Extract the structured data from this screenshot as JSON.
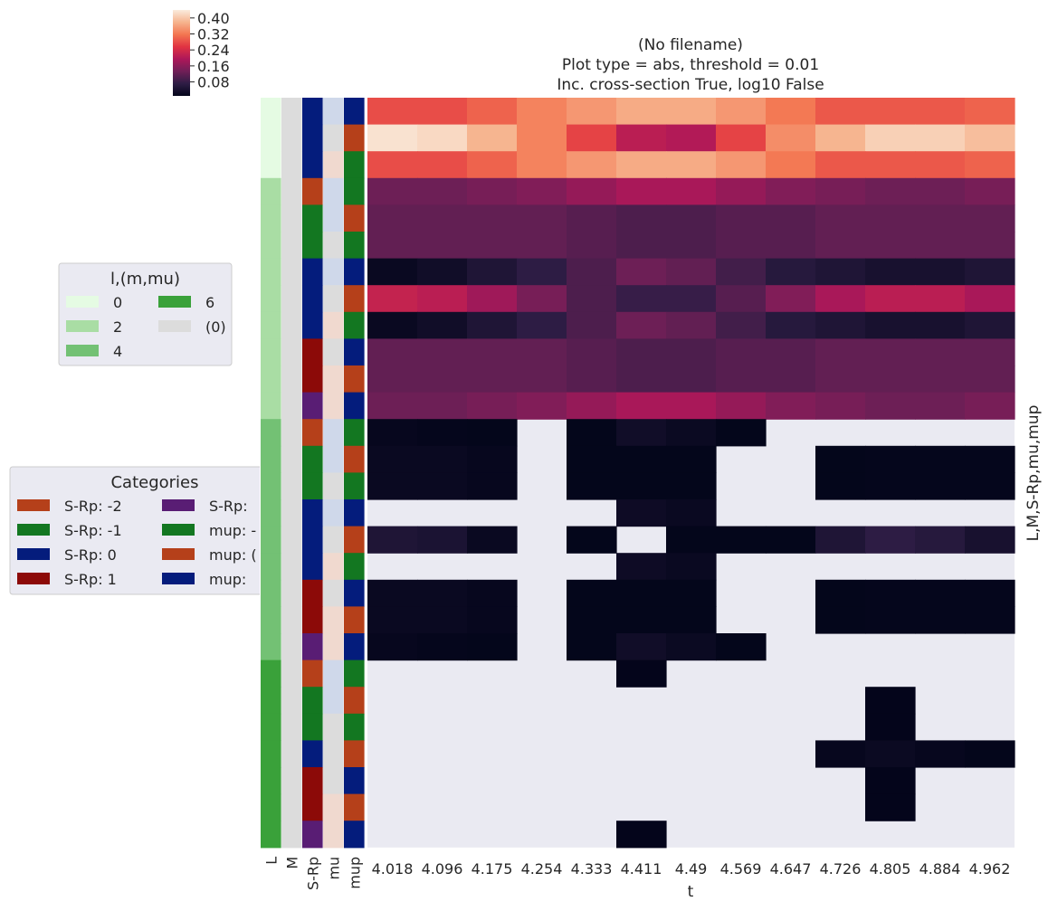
{
  "chart_data": {
    "type": "heatmap",
    "title": [
      "(No filename)",
      "Plot type = abs, threshold = 0.01",
      "Inc. cross-section True, log10 False"
    ],
    "xlabel": "t",
    "ylabel": "L,M,S-Rp,mu,mup",
    "x": [
      "4.018",
      "4.096",
      "4.175",
      "4.254",
      "4.333",
      "4.411",
      "4.49",
      "4.569",
      "4.647",
      "4.726",
      "4.805",
      "4.884",
      "4.962"
    ],
    "row_colors_labels": [
      "L",
      "M",
      "S-Rp",
      "mu",
      "mup"
    ],
    "colorbar": {
      "ticks": [
        "0.40",
        "0.32",
        "0.24",
        "0.16",
        "0.08"
      ],
      "tick_values": [
        0.4,
        0.32,
        0.24,
        0.16,
        0.08
      ],
      "range": [
        0.01,
        0.44
      ],
      "gradient": [
        "#03051a",
        "#2e1d45",
        "#701f57",
        "#ad1759",
        "#e13342",
        "#f37651",
        "#f6b48e",
        "#faebdd"
      ]
    },
    "missing_color": "#eaeaf2",
    "rows": [
      {
        "L": 0,
        "S-Rp": 0,
        "mu": -1,
        "mup": 1,
        "values": [
          0.28,
          0.28,
          0.3,
          0.33,
          0.35,
          0.37,
          0.37,
          0.35,
          0.32,
          0.29,
          0.29,
          0.29,
          0.3
        ]
      },
      {
        "L": 0,
        "S-Rp": 0,
        "mu": 0,
        "mup": 0,
        "values": [
          0.43,
          0.42,
          0.38,
          0.33,
          0.27,
          0.21,
          0.2,
          0.27,
          0.34,
          0.38,
          0.41,
          0.41,
          0.39
        ]
      },
      {
        "L": 0,
        "S-Rp": 0,
        "mu": 1,
        "mup": -1,
        "values": [
          0.28,
          0.28,
          0.3,
          0.33,
          0.35,
          0.37,
          0.37,
          0.35,
          0.32,
          0.29,
          0.29,
          0.29,
          0.3
        ]
      },
      {
        "L": 2,
        "S-Rp": -2,
        "mu": -1,
        "mup": -1,
        "values": [
          0.13,
          0.13,
          0.14,
          0.15,
          0.17,
          0.19,
          0.19,
          0.17,
          0.15,
          0.14,
          0.13,
          0.13,
          0.14
        ]
      },
      {
        "L": 2,
        "S-Rp": -1,
        "mu": -1,
        "mup": 0,
        "values": [
          0.12,
          0.12,
          0.12,
          0.12,
          0.11,
          0.1,
          0.1,
          0.11,
          0.11,
          0.12,
          0.12,
          0.12,
          0.12
        ]
      },
      {
        "L": 2,
        "S-Rp": -1,
        "mu": 0,
        "mup": -1,
        "values": [
          0.12,
          0.12,
          0.12,
          0.12,
          0.11,
          0.1,
          0.1,
          0.11,
          0.11,
          0.12,
          0.12,
          0.12,
          0.12
        ]
      },
      {
        "L": 2,
        "S-Rp": 0,
        "mu": -1,
        "mup": 1,
        "values": [
          0.02,
          0.03,
          0.05,
          0.07,
          0.1,
          0.13,
          0.12,
          0.09,
          0.06,
          0.05,
          0.04,
          0.04,
          0.05
        ]
      },
      {
        "L": 2,
        "S-Rp": 0,
        "mu": 0,
        "mup": 0,
        "values": [
          0.22,
          0.21,
          0.18,
          0.14,
          0.1,
          0.08,
          0.08,
          0.11,
          0.15,
          0.19,
          0.21,
          0.21,
          0.19
        ]
      },
      {
        "L": 2,
        "S-Rp": 0,
        "mu": 1,
        "mup": -1,
        "values": [
          0.02,
          0.03,
          0.05,
          0.07,
          0.1,
          0.13,
          0.12,
          0.09,
          0.06,
          0.05,
          0.04,
          0.04,
          0.05
        ]
      },
      {
        "L": 2,
        "S-Rp": 1,
        "mu": 0,
        "mup": 1,
        "values": [
          0.12,
          0.12,
          0.12,
          0.12,
          0.11,
          0.1,
          0.1,
          0.11,
          0.11,
          0.12,
          0.12,
          0.12,
          0.12
        ]
      },
      {
        "L": 2,
        "S-Rp": 1,
        "mu": 1,
        "mup": 0,
        "values": [
          0.12,
          0.12,
          0.12,
          0.12,
          0.11,
          0.1,
          0.1,
          0.11,
          0.11,
          0.12,
          0.12,
          0.12,
          0.12
        ]
      },
      {
        "L": 2,
        "S-Rp": 2,
        "mu": 1,
        "mup": 1,
        "values": [
          0.13,
          0.13,
          0.14,
          0.15,
          0.17,
          0.19,
          0.19,
          0.17,
          0.15,
          0.14,
          0.13,
          0.13,
          0.14
        ]
      },
      {
        "L": 4,
        "S-Rp": -2,
        "mu": -1,
        "mup": -1,
        "values": [
          0.015,
          0.013,
          0.012,
          null,
          0.012,
          0.03,
          0.022,
          0.012,
          null,
          null,
          null,
          null,
          null
        ]
      },
      {
        "L": 4,
        "S-Rp": -1,
        "mu": -1,
        "mup": 0,
        "values": [
          0.02,
          0.02,
          0.015,
          null,
          0.012,
          0.012,
          0.012,
          null,
          null,
          0.012,
          0.013,
          0.013,
          0.013
        ]
      },
      {
        "L": 4,
        "S-Rp": -1,
        "mu": 0,
        "mup": -1,
        "values": [
          0.02,
          0.02,
          0.015,
          null,
          0.012,
          0.012,
          0.012,
          null,
          null,
          0.012,
          0.013,
          0.013,
          0.013
        ]
      },
      {
        "L": 4,
        "S-Rp": 0,
        "mu": -1,
        "mup": 1,
        "values": [
          null,
          null,
          null,
          null,
          null,
          0.025,
          0.02,
          null,
          null,
          null,
          null,
          null,
          null
        ]
      },
      {
        "L": 4,
        "S-Rp": 0,
        "mu": 0,
        "mup": 0,
        "values": [
          0.05,
          0.045,
          0.02,
          null,
          0.012,
          null,
          0.012,
          0.012,
          0.012,
          0.05,
          0.07,
          0.06,
          0.04
        ]
      },
      {
        "L": 4,
        "S-Rp": 0,
        "mu": 1,
        "mup": -1,
        "values": [
          null,
          null,
          null,
          null,
          null,
          0.025,
          0.02,
          null,
          null,
          null,
          null,
          null,
          null
        ]
      },
      {
        "L": 4,
        "S-Rp": 1,
        "mu": 0,
        "mup": 1,
        "values": [
          0.02,
          0.02,
          0.015,
          null,
          0.012,
          0.012,
          0.012,
          null,
          null,
          0.012,
          0.013,
          0.013,
          0.013
        ]
      },
      {
        "L": 4,
        "S-Rp": 1,
        "mu": 1,
        "mup": 0,
        "values": [
          0.02,
          0.02,
          0.015,
          null,
          0.012,
          0.012,
          0.012,
          null,
          null,
          0.012,
          0.013,
          0.013,
          0.013
        ]
      },
      {
        "L": 4,
        "S-Rp": 2,
        "mu": 1,
        "mup": 1,
        "values": [
          0.015,
          0.013,
          0.012,
          null,
          0.012,
          0.03,
          0.022,
          0.012,
          null,
          null,
          null,
          null,
          null
        ]
      },
      {
        "L": 6,
        "S-Rp": -2,
        "mu": -1,
        "mup": -1,
        "values": [
          null,
          null,
          null,
          null,
          null,
          0.011,
          null,
          null,
          null,
          null,
          null,
          null,
          null
        ]
      },
      {
        "L": 6,
        "S-Rp": -1,
        "mu": -1,
        "mup": 0,
        "values": [
          null,
          null,
          null,
          null,
          null,
          null,
          null,
          null,
          null,
          null,
          0.011,
          null,
          null
        ]
      },
      {
        "L": 6,
        "S-Rp": -1,
        "mu": 0,
        "mup": -1,
        "values": [
          null,
          null,
          null,
          null,
          null,
          null,
          null,
          null,
          null,
          null,
          0.011,
          null,
          null
        ]
      },
      {
        "L": 6,
        "S-Rp": 0,
        "mu": 0,
        "mup": 0,
        "values": [
          null,
          null,
          null,
          null,
          null,
          null,
          null,
          null,
          null,
          0.015,
          0.022,
          0.015,
          0.012
        ]
      },
      {
        "L": 6,
        "S-Rp": 1,
        "mu": 0,
        "mup": 1,
        "values": [
          null,
          null,
          null,
          null,
          null,
          null,
          null,
          null,
          null,
          null,
          0.011,
          null,
          null
        ]
      },
      {
        "L": 6,
        "S-Rp": 1,
        "mu": 1,
        "mup": 0,
        "values": [
          null,
          null,
          null,
          null,
          null,
          null,
          null,
          null,
          null,
          null,
          0.011,
          null,
          null
        ]
      },
      {
        "L": 6,
        "S-Rp": 2,
        "mu": 1,
        "mup": 1,
        "values": [
          null,
          null,
          null,
          null,
          null,
          0.011,
          null,
          null,
          null,
          null,
          null,
          null,
          null
        ]
      }
    ],
    "legends": [
      {
        "title": "l,(m,mu)",
        "position": "left-upper",
        "columns": 2,
        "entries": [
          {
            "label": "0",
            "color": "#e5fbe3"
          },
          {
            "label": "6",
            "color": "#3aa13a"
          },
          {
            "label": "2",
            "color": "#a9dda4"
          },
          {
            "label": "(0)",
            "color": "#dcdcdc"
          },
          {
            "label": "4",
            "color": "#73c174"
          }
        ]
      },
      {
        "title": "Categories",
        "position": "left-middle",
        "columns": 2,
        "entries": [
          {
            "label": "S-Rp: -2",
            "color": "#b5401a"
          },
          {
            "label": "S-Rp: ",
            "color": "#591d74"
          },
          {
            "label": "S-Rp: -1",
            "color": "#137721"
          },
          {
            "label": "mup: -",
            "color": "#137721"
          },
          {
            "label": "S-Rp: 0",
            "color": "#041c7c"
          },
          {
            "label": "mup: (",
            "color": "#b5401a"
          },
          {
            "label": "S-Rp: 1",
            "color": "#8c0a08"
          },
          {
            "label": "mup: ",
            "color": "#041c7c"
          }
        ]
      }
    ],
    "category_colors": {
      "L": {
        "0": "#e5fbe3",
        "2": "#a9dda4",
        "4": "#73c174",
        "6": "#3aa13a"
      },
      "M": {
        "0": "#dcdcdc"
      },
      "S-Rp": {
        "-2": "#b5401a",
        "-1": "#137721",
        "0": "#041c7c",
        "1": "#8c0a08",
        "2": "#591d74"
      },
      "mu": {
        "-1": "#cfd8ea",
        "0": "#dcdcdc",
        "1": "#f0d9cf"
      },
      "mup": {
        "-1": "#137721",
        "0": "#b5401a",
        "1": "#041c7c"
      }
    }
  }
}
